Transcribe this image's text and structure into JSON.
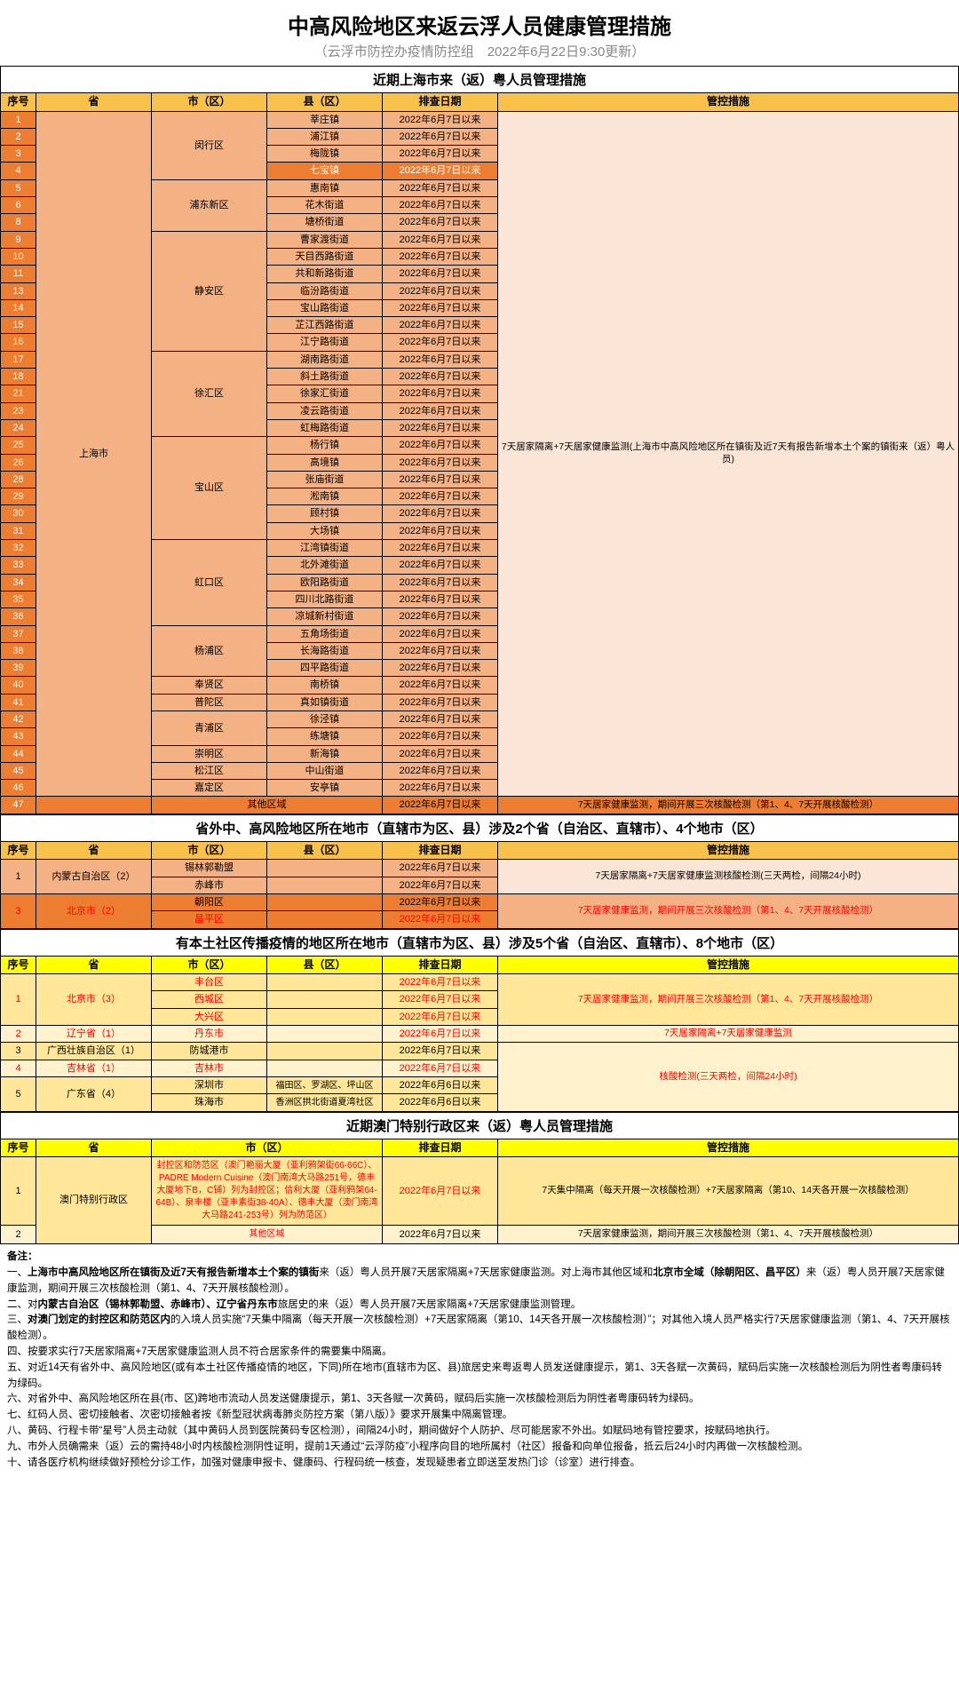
{
  "title": "中高风险地区来返云浮人员健康管理措施",
  "subtitle": "（云浮市防控办疫情防控组　2022年6月22日9:30更新）",
  "colors": {
    "orange_hdr": "#f7c14a",
    "orange_dark": "#ed7d31",
    "orange_mid": "#f4b183",
    "orange_light": "#fbe5d6",
    "yellow_hdr": "#ffff00",
    "yellow_mid": "#ffe699",
    "yellow_light": "#fff2cc",
    "red_text": "#ff0000"
  },
  "hdr": {
    "seq": "序号",
    "prov": "省",
    "city": "市（区）",
    "county": "县（区）",
    "date": "排查日期",
    "measure": "管控措施"
  },
  "sec1": {
    "title": "近期上海市来（返）粤人员管理措施",
    "prov": "上海市",
    "measure": "7天居家隔离+7天居家健康监测(上海市中高风险地区所在镇街及近7天有报告新增本土个案的镇街来（返）粤人员)",
    "other": {
      "seq": "47",
      "city": "其他区域",
      "date": "2022年6月7日以来",
      "measure": "7天居家健康监测，期间开展三次核酸检测（第1、4、7天开展核酸检测）"
    },
    "groups": [
      {
        "city": "闵行区",
        "rows": [
          {
            "s": "1",
            "c": "莘庄镇",
            "d": "2022年6月7日以来"
          },
          {
            "s": "2",
            "c": "浦江镇",
            "d": "2022年6月7日以来"
          },
          {
            "s": "3",
            "c": "梅陇镇",
            "d": "2022年6月7日以来"
          },
          {
            "s": "4",
            "c": "七宝镇",
            "d": "2022年6月7日以来",
            "hl": true
          }
        ]
      },
      {
        "city": "浦东新区",
        "rows": [
          {
            "s": "5",
            "c": "惠南镇",
            "d": "2022年6月7日以来"
          },
          {
            "s": "6",
            "c": "花木街道",
            "d": "2022年6月7日以来"
          },
          {
            "s": "8",
            "c": "塘桥街道",
            "d": "2022年6月7日以来"
          }
        ]
      },
      {
        "city": "静安区",
        "rows": [
          {
            "s": "9",
            "c": "曹家渡街道",
            "d": "2022年6月7日以来"
          },
          {
            "s": "10",
            "c": "天目西路街道",
            "d": "2022年6月7日以来"
          },
          {
            "s": "11",
            "c": "共和新路街道",
            "d": "2022年6月7日以来"
          },
          {
            "s": "13",
            "c": "临汾路街道",
            "d": "2022年6月7日以来"
          },
          {
            "s": "14",
            "c": "宝山路街道",
            "d": "2022年6月7日以来"
          },
          {
            "s": "15",
            "c": "芷江西路街道",
            "d": "2022年6月7日以来"
          },
          {
            "s": "16",
            "c": "江宁路街道",
            "d": "2022年6月7日以来"
          }
        ]
      },
      {
        "city": "徐汇区",
        "rows": [
          {
            "s": "17",
            "c": "湖南路街道",
            "d": "2022年6月7日以来"
          },
          {
            "s": "18",
            "c": "斜土路街道",
            "d": "2022年6月7日以来"
          },
          {
            "s": "21",
            "c": "徐家汇街道",
            "d": "2022年6月7日以来"
          },
          {
            "s": "23",
            "c": "凌云路街道",
            "d": "2022年6月7日以来"
          },
          {
            "s": "24",
            "c": "虹梅路街道",
            "d": "2022年6月7日以来"
          }
        ]
      },
      {
        "city": "宝山区",
        "rows": [
          {
            "s": "25",
            "c": "杨行镇",
            "d": "2022年6月7日以来"
          },
          {
            "s": "26",
            "c": "高境镇",
            "d": "2022年6月7日以来"
          },
          {
            "s": "28",
            "c": "张庙街道",
            "d": "2022年6月7日以来"
          },
          {
            "s": "29",
            "c": "淞南镇",
            "d": "2022年6月7日以来"
          },
          {
            "s": "30",
            "c": "顾村镇",
            "d": "2022年6月7日以来"
          },
          {
            "s": "31",
            "c": "大场镇",
            "d": "2022年6月7日以来"
          }
        ]
      },
      {
        "city": "虹口区",
        "rows": [
          {
            "s": "32",
            "c": "江湾镇街道",
            "d": "2022年6月7日以来"
          },
          {
            "s": "33",
            "c": "北外滩街道",
            "d": "2022年6月7日以来"
          },
          {
            "s": "34",
            "c": "欧阳路街道",
            "d": "2022年6月7日以来"
          },
          {
            "s": "35",
            "c": "四川北路街道",
            "d": "2022年6月7日以来"
          },
          {
            "s": "36",
            "c": "凉城新村街道",
            "d": "2022年6月7日以来"
          }
        ]
      },
      {
        "city": "杨浦区",
        "rows": [
          {
            "s": "37",
            "c": "五角场街道",
            "d": "2022年6月7日以来"
          },
          {
            "s": "38",
            "c": "长海路街道",
            "d": "2022年6月7日以来"
          },
          {
            "s": "39",
            "c": "四平路街道",
            "d": "2022年6月7日以来"
          }
        ]
      },
      {
        "city": "奉贤区",
        "rows": [
          {
            "s": "40",
            "c": "南桥镇",
            "d": "2022年6月7日以来"
          }
        ]
      },
      {
        "city": "普陀区",
        "rows": [
          {
            "s": "41",
            "c": "真如镇街道",
            "d": "2022年6月7日以来"
          }
        ]
      },
      {
        "city": "青浦区",
        "rows": [
          {
            "s": "42",
            "c": "徐泾镇",
            "d": "2022年6月7日以来"
          },
          {
            "s": "43",
            "c": "练塘镇",
            "d": "2022年6月7日以来"
          }
        ]
      },
      {
        "city": "崇明区",
        "rows": [
          {
            "s": "44",
            "c": "新海镇",
            "d": "2022年6月7日以来"
          }
        ]
      },
      {
        "city": "松江区",
        "rows": [
          {
            "s": "45",
            "c": "中山街道",
            "d": "2022年6月7日以来"
          }
        ]
      },
      {
        "city": "嘉定区",
        "rows": [
          {
            "s": "46",
            "c": "安亭镇",
            "d": "2022年6月7日以来"
          }
        ]
      }
    ]
  },
  "sec2": {
    "title": "省外中、高风险地区所在地市（直辖市为区、县）涉及2个省（自治区、直辖市）、4个地市（区）",
    "rows": [
      {
        "s": "1",
        "prov": "内蒙古自治区（2）",
        "cities": [
          {
            "c": "锡林郭勒盟",
            "d": "2022年6月7日以来"
          },
          {
            "c": "赤峰市",
            "d": "2022年6月7日以来"
          }
        ],
        "measure": "7天居家隔离+7天居家健康监测核酸检测(三天两检，间隔24小时)",
        "tone": "mid"
      },
      {
        "s": "3",
        "prov": "北京市（2）",
        "red": true,
        "cities": [
          {
            "c": "朝阳区",
            "d": "2022年6月7日以来"
          },
          {
            "c": "昌平区",
            "d": "2022年6月7日以来",
            "red": true
          }
        ],
        "measure": "7天居家健康监测，期间开展三次核酸检测（第1、4、7天开展核酸检测）",
        "measure_red": true,
        "tone": "dark"
      }
    ]
  },
  "sec3": {
    "title": "有本土社区传播疫情的地区所在地市（直辖市为区、县）涉及5个省（自治区、直辖市）、8个地市（区）",
    "rows": [
      {
        "s": "1",
        "prov": "北京市（3）",
        "red": true,
        "cities": [
          {
            "c": "丰台区",
            "d": "2022年6月7日以来",
            "red": true
          },
          {
            "c": "西城区",
            "d": "2022年6月7日以来",
            "red": true
          },
          {
            "c": "大兴区",
            "d": "2022年6月7日以来",
            "red": true
          }
        ],
        "measure": "7天居家健康监测，期间开展三次核酸检测（第1、4、7天开展核酸检测）",
        "measure_red": true,
        "tone": "mid"
      },
      {
        "s": "2",
        "prov": "辽宁省（1）",
        "red": true,
        "cities": [
          {
            "c": "丹东市",
            "d": "2022年6月7日以来",
            "red": true
          }
        ],
        "measure": "7天居家隔离+7天居家健康监测",
        "measure_red": true,
        "tone": "light"
      },
      {
        "s": "3",
        "prov": "广西壮族自治区（1）",
        "cities": [
          {
            "c": "防城港市",
            "d": "2022年6月7日以来"
          }
        ],
        "measure": "",
        "tone": "mid",
        "merge_measure": true
      },
      {
        "s": "4",
        "prov": "吉林省（1）",
        "red": true,
        "cities": [
          {
            "c": "吉林市",
            "d": "2022年6月7日以来",
            "red": true
          }
        ],
        "measure": "核酸检测(三天两检，间隔24小时)",
        "measure_red": true,
        "tone": "light",
        "measure_span": 4
      },
      {
        "s": "5",
        "prov": "广东省（4）",
        "cities": [
          {
            "c": "深圳市",
            "sub": "福田区、罗湖区、坪山区",
            "d": "2022年6月6日以来"
          },
          {
            "c": "珠海市",
            "sub": "香洲区拱北街道夏湾社区",
            "d": "2022年6月6日以来"
          }
        ],
        "measure": "",
        "tone": "mid"
      }
    ]
  },
  "sec4": {
    "title": "近期澳门特别行政区来（返）粤人员管理措施",
    "prov": "澳门特别行政区",
    "rows": [
      {
        "s": "1",
        "city": "封控区和防范区（澳门艳丽大厦（亚利鸦架街66-66C）、PADRE Modern Cuisine（澳门南湾大马路251号，德丰大厦地下B，C铺）列为封控区；信利大厦（亚利鸦架64-64B）、泉丰楼（亚丰素街38-40A）、德丰大厦（澳门南湾大马路241-253号）列为防范区）",
        "d": "2022年6月7日以来",
        "measure": "7天集中隔离（每天开展一次核酸检测）+7天居家隔离（第10、14天各开展一次核酸检测）",
        "red": true,
        "tone": "mid"
      },
      {
        "s": "2",
        "city": "其他区域",
        "d": "2022年6月7日以来",
        "measure": "7天居家健康监测，期间开展三次核酸检测（第1、4、7天开展核酸检测）",
        "red": true,
        "tone": "light"
      }
    ]
  },
  "notes": {
    "hdr": "备注：",
    "items": [
      "一、<b>上海市中高风险地区所在镇街及近7天有报告新增本土个案的镇街</b>来（返）粤人员开展7天居家隔离+7天居家健康监测。对上海市其他区域和<b>北京市全域（除朝阳区、昌平区）</b>来（返）粤人员开展7天居家健康监测，期间开展三次核酸检测（第1、4、7天开展核酸检测）。",
      "二、对<b>内蒙古自治区（锡林郭勒盟、赤峰市）、辽宁省丹东市</b>旅居史的来（返）粤人员开展7天居家隔离+7天居家健康监测管理。",
      "三、<b>对澳门划定的封控区和防范区内</b>的入境人员实施“7天集中隔离（每天开展一次核酸检测）+7天居家隔离（第10、14天各开展一次核酸检测）”；对其他入境人员严格实行7天居家健康监测（第1、4、7天开展核酸检测）。",
      "四、按要求实行7天居家隔离+7天居家健康监测人员不符合居家条件的需要集中隔离。",
      "五、对近14天有省外中、高风险地区(或有本土社区传播疫情的地区，下同)所在地市(直辖市为区、县)旅居史来粤返粤人员发送健康提示，第1、3天各赋一次黄码，赋码后实施一次核酸检测后为阴性者粤康码转为绿码。",
      "六、对省外中、高风险地区所在县(市、区)跨地市流动人员发送健康提示，第1、3天各赋一次黄码，赋码后实施一次核酸检测后为阴性者粤康码转为绿码。",
      "七、红码人员、密切接触者、次密切接触者按《新型冠状病毒肺炎防控方案（第八版）》要求开展集中隔离管理。",
      "八、黄码、行程卡带“星号”人员主动就（其中黄码人员到医院黄码专区检测），间隔24小时，期间做好个人防护、尽可能居家不外出。如赋码地有管控要求，按赋码地执行。",
      "九、市外人员确需来（返）云的需持48小时内核酸检测阴性证明，提前1天通过“云浮防疫”小程序向目的地所属村（社区）报备和向单位报备，抵云后24小时内再做一次核酸检测。",
      "十、请各医疗机构继续做好预检分诊工作，加强对健康申报卡、健康码、行程码统一核查，发现疑患者立即送至发热门诊（诊室）进行排查。"
    ]
  }
}
